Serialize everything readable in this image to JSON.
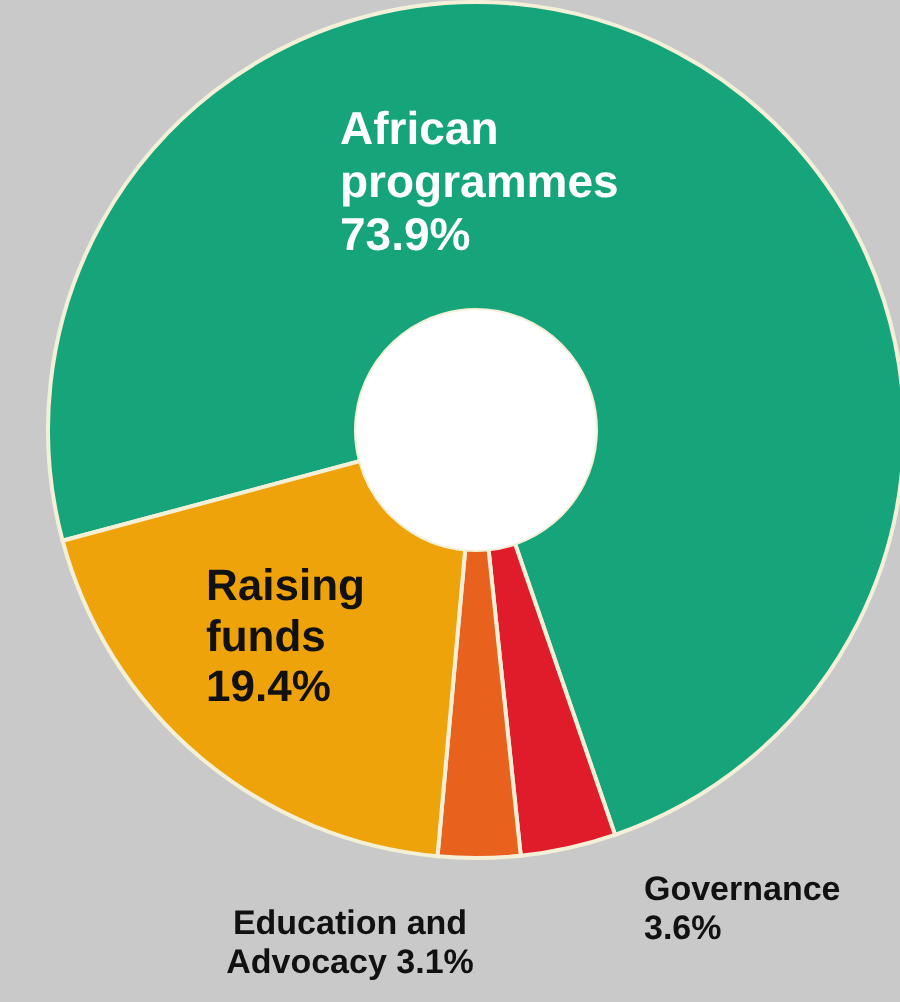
{
  "chart_data": {
    "type": "donut",
    "categories": [
      "African programmes",
      "Governance",
      "Education and Advocacy",
      "Raising funds"
    ],
    "values": [
      73.9,
      3.6,
      3.1,
      19.4
    ],
    "value_labels": [
      "73.9%",
      "3.6%",
      "3.1%",
      "19.4%"
    ],
    "colors": [
      "#16a47a",
      "#e01b2a",
      "#e8621d",
      "#efa30a"
    ]
  }
}
